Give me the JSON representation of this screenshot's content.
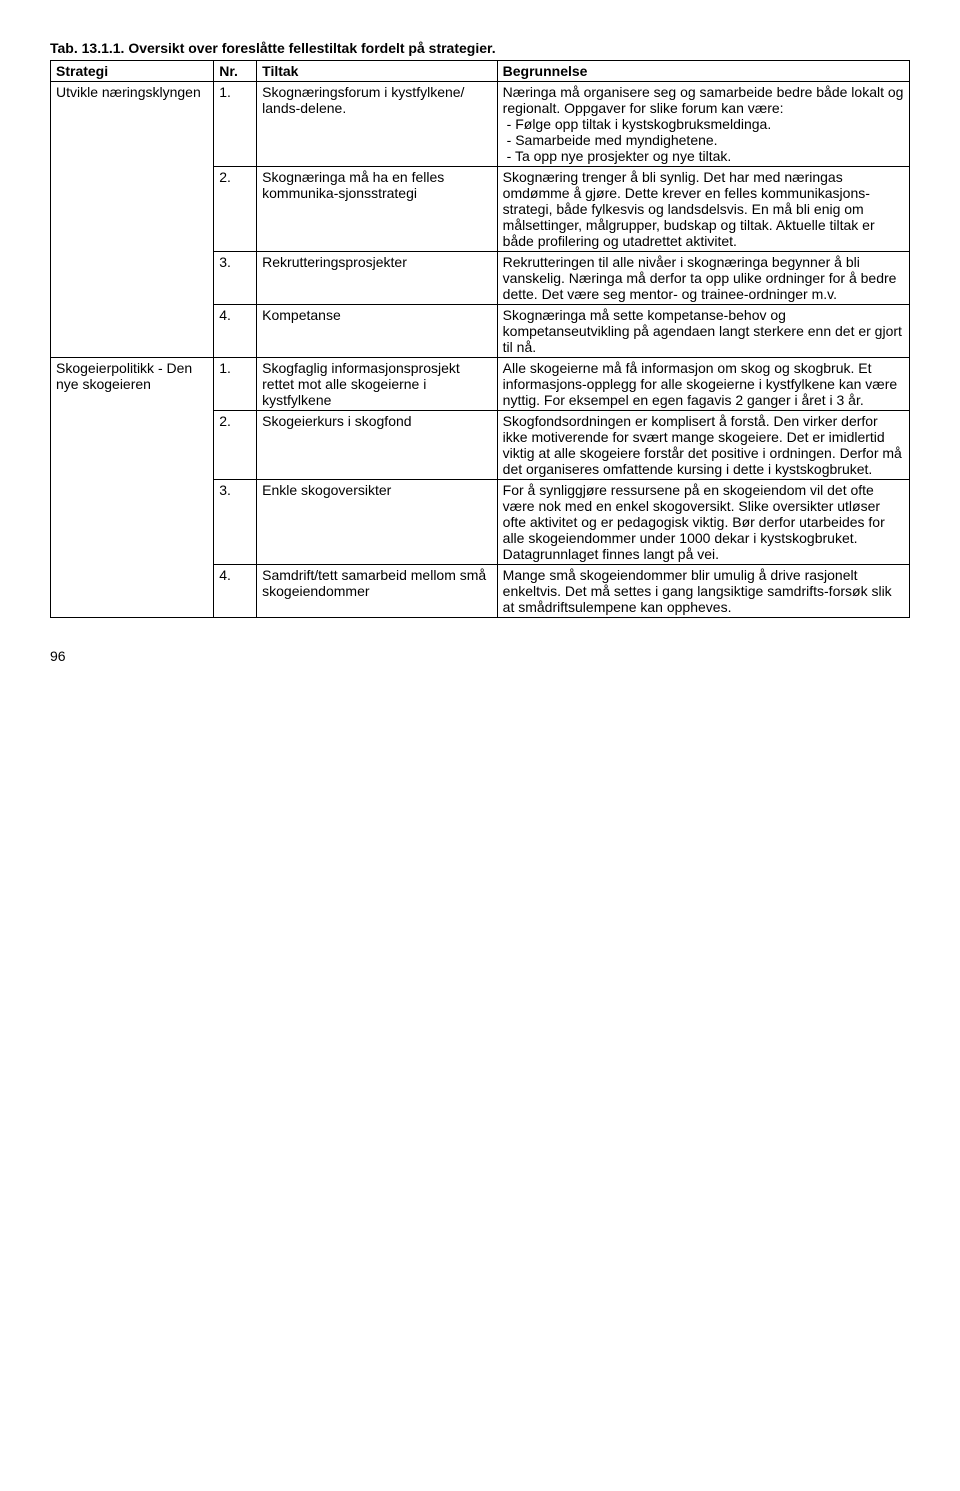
{
  "caption": "Tab. 13.1.1. Oversikt over foreslåtte fellestiltak fordelt på strategier.",
  "headers": {
    "strategi": "Strategi",
    "nr": "Nr.",
    "tiltak": "Tiltak",
    "begrunnelse": "Begrunnelse"
  },
  "groups": [
    {
      "strategi": "Utvikle næringsklyngen",
      "rows": [
        {
          "nr": "1.",
          "tiltak": "Skognæringsforum i kystfylkene/ lands-delene.",
          "begr_intro": "Næringa må organisere seg og samarbeide bedre både lokalt og regionalt. Oppgaver for slike forum kan være:",
          "begr_list": [
            "Følge opp tiltak i kystskogbruksmeldinga.",
            "Samarbeide med myndighetene.",
            "Ta opp nye prosjekter og nye tiltak."
          ]
        },
        {
          "nr": "2.",
          "tiltak": "Skognæringa må ha en felles kommunika-sjonsstrategi",
          "begr": "Skognæring trenger å bli synlig. Det har med næringas omdømme å gjøre. Dette krever en felles kommunikasjons-strategi, både fylkesvis og landsdelsvis. En må bli enig om målsettinger, målgrupper, budskap og tiltak. Aktuelle tiltak er både profilering og utadrettet aktivitet."
        },
        {
          "nr": "3.",
          "tiltak": "Rekrutteringsprosjekter",
          "begr": "Rekrutteringen til alle nivåer i skognæringa begynner å bli vanskelig. Næringa må derfor ta opp ulike ordninger for å bedre dette. Det være seg mentor- og trainee-ordninger m.v."
        },
        {
          "nr": "4.",
          "tiltak": "Kompetanse",
          "begr": "Skognæringa må sette kompetanse-behov og kompetanseutvikling på agendaen langt sterkere enn det er gjort til nå."
        }
      ]
    },
    {
      "strategi": "Skogeierpolitikk - Den nye skogeieren",
      "rows": [
        {
          "nr": "1.",
          "tiltak": "Skogfaglig informasjonsprosjekt rettet mot alle skogeierne i kystfylkene",
          "begr": "Alle skogeierne må få informasjon om skog og skogbruk. Et informasjons-opplegg for alle skogeierne i kystfylkene kan være nyttig. For eksempel en egen fagavis 2 ganger i året i 3 år."
        },
        {
          "nr": "2.",
          "tiltak": "Skogeierkurs i skogfond",
          "begr": "Skogfondsordningen er komplisert å forstå. Den virker derfor ikke motiverende for svært mange skogeiere. Det er imidlertid viktig at alle skogeiere forstår det positive i ordningen. Derfor må det organiseres omfattende kursing i dette i kystskogbruket."
        },
        {
          "nr": "3.",
          "tiltak": "Enkle skogoversikter",
          "begr": "For å synliggjøre ressursene på en skogeiendom vil det ofte være nok med en enkel skogoversikt. Slike oversikter utløser ofte aktivitet og er pedagogisk viktig. Bør derfor utarbeides for alle skogeiendommer under 1000 dekar i kystskogbruket. Datagrunnlaget finnes langt på vei."
        },
        {
          "nr": "4.",
          "tiltak": "Samdrift/tett samarbeid mellom små skogeiendommer",
          "begr": "Mange små skogeiendommer blir umulig å drive rasjonelt enkeltvis. Det må settes i gang langsiktige samdrifts-forsøk slik at smådriftsulempene kan oppheves."
        }
      ]
    }
  ],
  "pagenum": "96"
}
